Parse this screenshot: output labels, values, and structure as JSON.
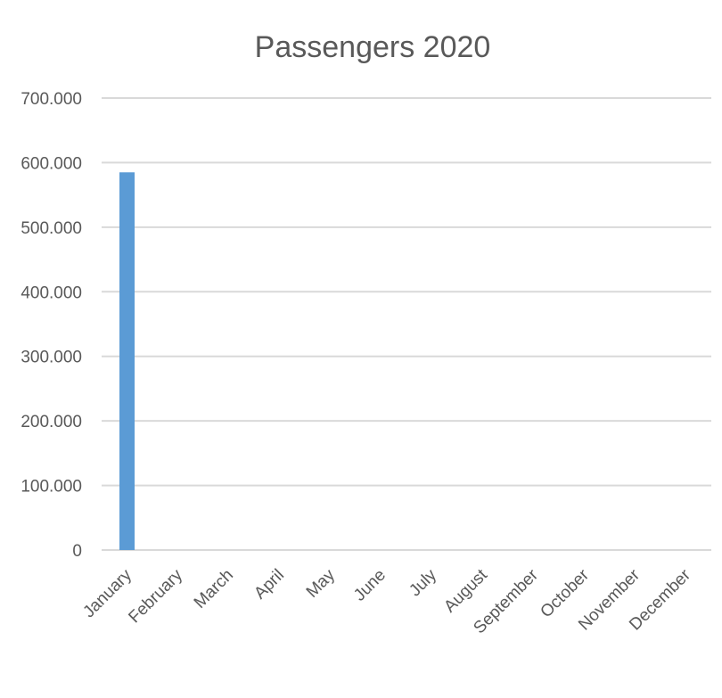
{
  "chart_data": {
    "type": "bar",
    "title": "Passengers 2020",
    "xlabel": "",
    "ylabel": "",
    "categories": [
      "January",
      "February",
      "March",
      "April",
      "May",
      "June",
      "July",
      "August",
      "September",
      "October",
      "November",
      "December"
    ],
    "values": [
      585000,
      0,
      0,
      0,
      0,
      0,
      0,
      0,
      0,
      0,
      0,
      0
    ],
    "ylim": [
      0,
      700000
    ],
    "y_ticks": [
      0,
      100000,
      200000,
      300000,
      400000,
      500000,
      600000,
      700000
    ],
    "y_tick_labels": [
      "0",
      "100.000",
      "200.000",
      "300.000",
      "400.000",
      "500.000",
      "600.000",
      "700.000"
    ],
    "grid": true,
    "legend": "none",
    "bar_color": "#5b9bd5"
  }
}
